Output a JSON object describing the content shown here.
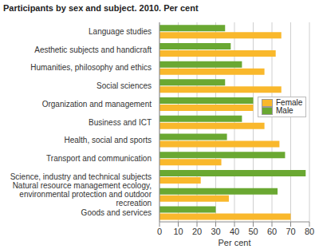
{
  "chart_data": {
    "type": "bar",
    "orientation": "horizontal",
    "title": "Participants by sex and subject. 2010. Per cent",
    "xlabel": "Per cent",
    "categories": [
      "Language studies",
      "Aesthetic subjects and handicraft",
      "Humanities, philosophy and ethics",
      "Social sciences",
      "Organization and management",
      "Business and ICT",
      "Health, social and sports",
      "Transport and communication",
      "Science, industry and technical subjects",
      "Natural resource management ecology, environmental protection and outdoor recreation",
      "Goods and services"
    ],
    "series": [
      {
        "name": "Female",
        "color": "#f9b82c",
        "values": [
          65,
          62,
          56,
          65,
          50,
          56,
          64,
          33,
          22,
          37,
          70
        ]
      },
      {
        "name": "Male",
        "color": "#6aa832",
        "values": [
          35,
          38,
          44,
          35,
          50,
          44,
          36,
          67,
          78,
          63,
          30
        ]
      }
    ],
    "xlim": [
      0,
      80
    ],
    "xticks": [
      0,
      10,
      20,
      30,
      40,
      50,
      60,
      70,
      80
    ],
    "grid": true,
    "legend": "right"
  }
}
